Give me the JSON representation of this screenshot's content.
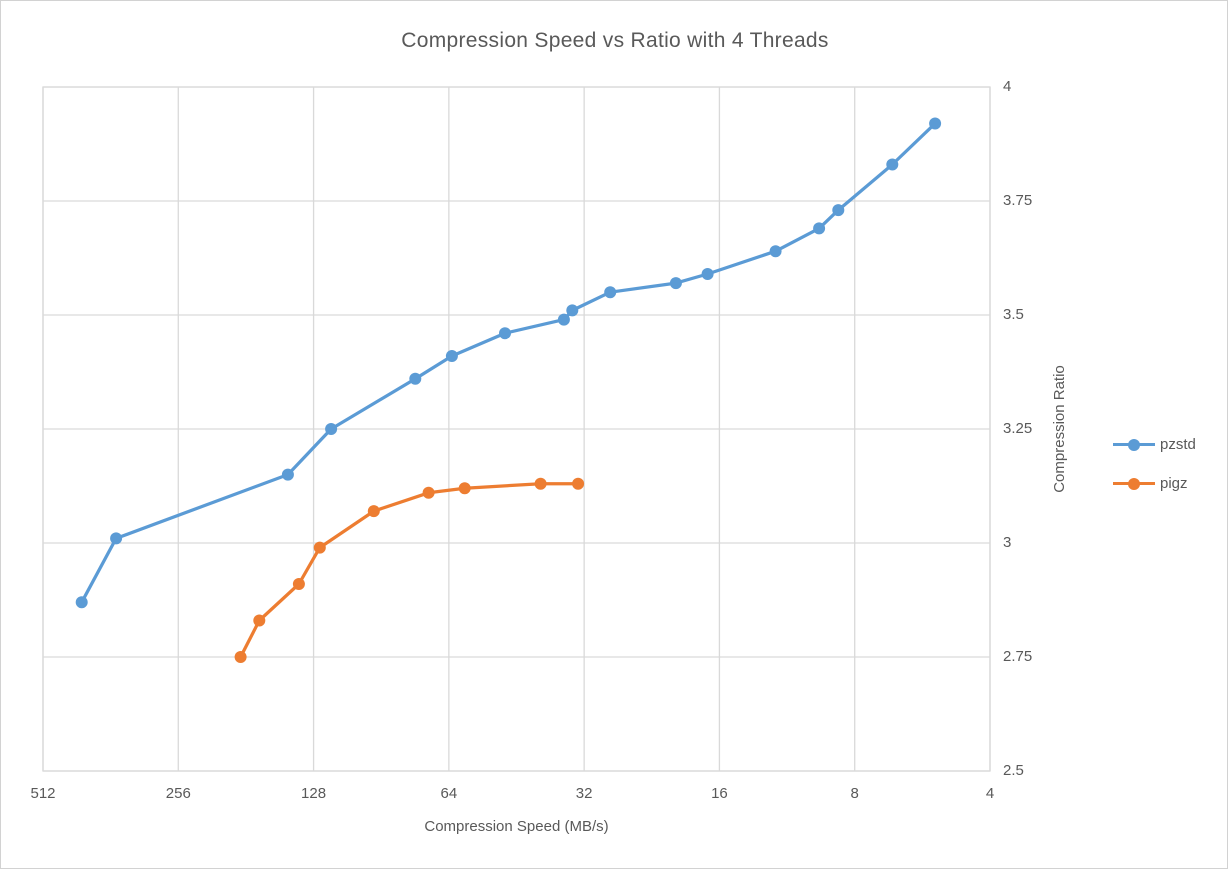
{
  "title": "Compression Speed vs Ratio with 4 Threads",
  "colors": {
    "pzstd": "#5B9BD5",
    "pigz": "#ED7D31",
    "grid": "#D9D9D9",
    "text": "#595959",
    "frame_border": "#D2D2D2",
    "background": "#FFFFFF"
  },
  "chart_data": {
    "type": "line",
    "title": "Compression Speed vs Ratio with 4 Threads",
    "xlabel": "Compression Speed (MB/s)",
    "ylabel": "Compression Ratio",
    "x_axis": {
      "scale": "log2",
      "reversed": true,
      "min": 4,
      "max": 512,
      "ticks": [
        512,
        256,
        128,
        64,
        32,
        16,
        8,
        4
      ]
    },
    "y_axis": {
      "side": "right",
      "min": 2.5,
      "max": 4,
      "ticks": [
        4,
        3.75,
        3.5,
        3.25,
        3,
        2.75,
        2.5
      ]
    },
    "grid": true,
    "legend_position": "right",
    "series": [
      {
        "name": "pzstd",
        "color": "#5B9BD5",
        "points": [
          [
            420,
            2.87
          ],
          [
            352,
            3.01
          ],
          [
            146,
            3.15
          ],
          [
            117,
            3.25
          ],
          [
            76,
            3.36
          ],
          [
            63,
            3.41
          ],
          [
            48,
            3.46
          ],
          [
            35.5,
            3.49
          ],
          [
            34,
            3.51
          ],
          [
            28,
            3.55
          ],
          [
            20,
            3.57
          ],
          [
            17,
            3.59
          ],
          [
            12,
            3.64
          ],
          [
            9.6,
            3.69
          ],
          [
            8.7,
            3.73
          ],
          [
            6.6,
            3.83
          ],
          [
            5.3,
            3.92
          ]
        ]
      },
      {
        "name": "pigz",
        "color": "#ED7D31",
        "points": [
          [
            186,
            2.75
          ],
          [
            169,
            2.83
          ],
          [
            138,
            2.91
          ],
          [
            124,
            2.99
          ],
          [
            94,
            3.07
          ],
          [
            71,
            3.11
          ],
          [
            59,
            3.12
          ],
          [
            40,
            3.13
          ],
          [
            33,
            3.13
          ]
        ]
      }
    ]
  }
}
